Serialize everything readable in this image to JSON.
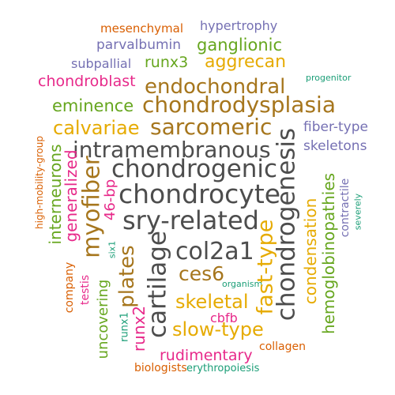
{
  "palette": {
    "orange": "#d95f02",
    "purple": "#7570b3",
    "green": "#66a61e",
    "gold": "#e6ab02",
    "pink": "#e7298a",
    "brown": "#a6761d",
    "grey": "#4d4d4d",
    "teal": "#1b9e77"
  },
  "words": {
    "mesenchymal": "mesenchymal",
    "hypertrophy": "hypertrophy",
    "parvalbumin": "parvalbumin",
    "ganglionic": "ganglionic",
    "subpallial": "subpallial",
    "runx3": "runx3",
    "aggrecan": "aggrecan",
    "progenitor": "progenitor",
    "chondroblast": "chondroblast",
    "endochondral": "endochondral",
    "eminence": "eminence",
    "chondrodysplasia": "chondrodysplasia",
    "calvariae": "calvariae",
    "sarcomeric": "sarcomeric",
    "fiber_type": "fiber-type",
    "high_mobility_group": "high-mobility-group",
    "intramembranous": "intramembranous",
    "skeletons": "skeletons",
    "chondrogenic": "chondrogenic",
    "interneurons": "interneurons",
    "generalized": "generalized",
    "myofiber": "myofiber",
    "bp46": "46-bp",
    "chondrocyte": "chondrocyte",
    "chondrogenesis": "chondrogenesis",
    "hemoglobinopathies": "hemoglobinopathies",
    "contractile": "contractile",
    "severely": "severely",
    "sry_related": "sry-related",
    "condensation": "condensation",
    "six1": "six1",
    "plates": "plates",
    "cartilage": "cartilage",
    "col2a1": "col2a1",
    "fast_type": "fast-type",
    "company": "company",
    "testis": "testis",
    "ces6": "ces6",
    "organism": "organism",
    "skeletal": "skeletal",
    "uncovering": "uncovering",
    "runx2": "runx2",
    "runx1": "runx1",
    "cbfb": "cbfb",
    "slow_type": "slow-type",
    "collagen": "collagen",
    "rudimentary": "rudimentary",
    "biologists": "biologists",
    "erythropoiesis": "erythropoiesis"
  }
}
